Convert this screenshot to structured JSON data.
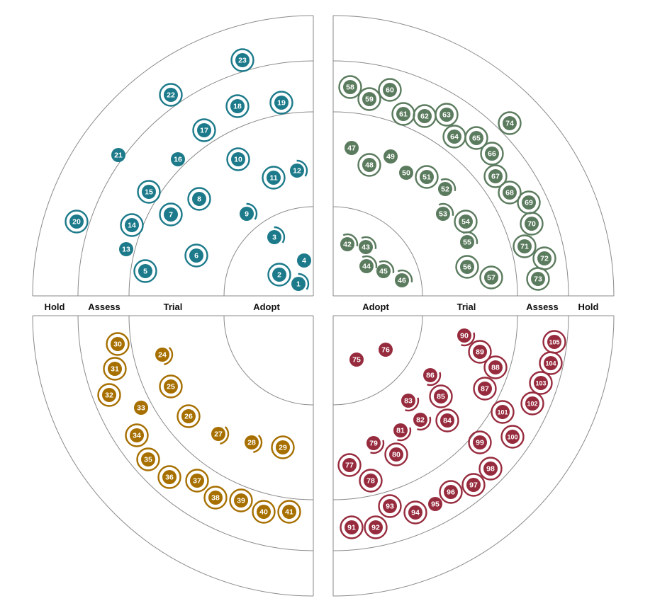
{
  "rings": [
    "Adopt",
    "Trial",
    "Assess",
    "Hold"
  ],
  "colors": {
    "teal": "#1c7a8a",
    "green": "#5b7b5e",
    "gold": "#a66f00",
    "red": "#972b3e",
    "gridline": "#8a8a8a"
  },
  "blip_legend": {
    "double_ring": "new or moved",
    "half_arc": "moved in",
    "plain": "no change"
  },
  "quadrants": [
    {
      "color": "teal",
      "blips": [
        {
          "n": "1",
          "ring": "Adopt",
          "mark": "arc"
        },
        {
          "n": "2",
          "ring": "Adopt",
          "mark": "ring"
        },
        {
          "n": "3",
          "ring": "Adopt",
          "mark": "arc"
        },
        {
          "n": "4",
          "ring": "Adopt",
          "mark": "plain"
        },
        {
          "n": "5",
          "ring": "Trial",
          "mark": "ring"
        },
        {
          "n": "6",
          "ring": "Trial",
          "mark": "ring"
        },
        {
          "n": "7",
          "ring": "Trial",
          "mark": "ring"
        },
        {
          "n": "8",
          "ring": "Trial",
          "mark": "ring"
        },
        {
          "n": "9",
          "ring": "Trial",
          "mark": "arc"
        },
        {
          "n": "10",
          "ring": "Trial",
          "mark": "ring"
        },
        {
          "n": "11",
          "ring": "Trial",
          "mark": "ring"
        },
        {
          "n": "12",
          "ring": "Trial",
          "mark": "arc"
        },
        {
          "n": "13",
          "ring": "Assess",
          "mark": "plain"
        },
        {
          "n": "14",
          "ring": "Assess",
          "mark": "ring"
        },
        {
          "n": "15",
          "ring": "Assess",
          "mark": "ring"
        },
        {
          "n": "16",
          "ring": "Assess",
          "mark": "plain"
        },
        {
          "n": "17",
          "ring": "Assess",
          "mark": "ring"
        },
        {
          "n": "18",
          "ring": "Assess",
          "mark": "ring"
        },
        {
          "n": "19",
          "ring": "Assess",
          "mark": "ring"
        },
        {
          "n": "20",
          "ring": "Hold",
          "mark": "ring"
        },
        {
          "n": "21",
          "ring": "Hold",
          "mark": "plain"
        },
        {
          "n": "22",
          "ring": "Hold",
          "mark": "ring"
        },
        {
          "n": "23",
          "ring": "Hold",
          "mark": "ring"
        }
      ]
    },
    {
      "color": "green",
      "blips": [
        {
          "n": "42",
          "ring": "Adopt",
          "mark": "arc"
        },
        {
          "n": "43",
          "ring": "Adopt",
          "mark": "arc"
        },
        {
          "n": "44",
          "ring": "Adopt",
          "mark": "arc"
        },
        {
          "n": "45",
          "ring": "Adopt",
          "mark": "arc"
        },
        {
          "n": "46",
          "ring": "Adopt",
          "mark": "arc"
        },
        {
          "n": "47",
          "ring": "Trial",
          "mark": "plain"
        },
        {
          "n": "48",
          "ring": "Trial",
          "mark": "ring"
        },
        {
          "n": "49",
          "ring": "Trial",
          "mark": "plain"
        },
        {
          "n": "50",
          "ring": "Trial",
          "mark": "plain"
        },
        {
          "n": "51",
          "ring": "Trial",
          "mark": "ring"
        },
        {
          "n": "52",
          "ring": "Trial",
          "mark": "arc"
        },
        {
          "n": "53",
          "ring": "Trial",
          "mark": "arc"
        },
        {
          "n": "54",
          "ring": "Trial",
          "mark": "ring"
        },
        {
          "n": "55",
          "ring": "Trial",
          "mark": "arc"
        },
        {
          "n": "56",
          "ring": "Trial",
          "mark": "ring"
        },
        {
          "n": "57",
          "ring": "Trial",
          "mark": "ring"
        },
        {
          "n": "58",
          "ring": "Assess",
          "mark": "ring"
        },
        {
          "n": "59",
          "ring": "Assess",
          "mark": "ring"
        },
        {
          "n": "60",
          "ring": "Assess",
          "mark": "ring"
        },
        {
          "n": "61",
          "ring": "Assess",
          "mark": "ring"
        },
        {
          "n": "62",
          "ring": "Assess",
          "mark": "ring"
        },
        {
          "n": "63",
          "ring": "Assess",
          "mark": "ring"
        },
        {
          "n": "64",
          "ring": "Assess",
          "mark": "ring"
        },
        {
          "n": "65",
          "ring": "Assess",
          "mark": "ring"
        },
        {
          "n": "66",
          "ring": "Assess",
          "mark": "ring"
        },
        {
          "n": "67",
          "ring": "Assess",
          "mark": "ring"
        },
        {
          "n": "68",
          "ring": "Assess",
          "mark": "ring"
        },
        {
          "n": "69",
          "ring": "Assess",
          "mark": "ring"
        },
        {
          "n": "70",
          "ring": "Assess",
          "mark": "ring"
        },
        {
          "n": "71",
          "ring": "Assess",
          "mark": "ring"
        },
        {
          "n": "72",
          "ring": "Assess",
          "mark": "ring"
        },
        {
          "n": "73",
          "ring": "Assess",
          "mark": "ring"
        },
        {
          "n": "74",
          "ring": "Hold",
          "mark": "ring"
        }
      ]
    },
    {
      "color": "gold",
      "blips": [
        {
          "n": "24",
          "ring": "Trial",
          "mark": "arc"
        },
        {
          "n": "25",
          "ring": "Trial",
          "mark": "ring"
        },
        {
          "n": "26",
          "ring": "Trial",
          "mark": "ring"
        },
        {
          "n": "27",
          "ring": "Trial",
          "mark": "arc"
        },
        {
          "n": "28",
          "ring": "Trial",
          "mark": "arc"
        },
        {
          "n": "29",
          "ring": "Trial",
          "mark": "ring"
        },
        {
          "n": "30",
          "ring": "Assess",
          "mark": "ring"
        },
        {
          "n": "31",
          "ring": "Assess",
          "mark": "ring"
        },
        {
          "n": "32",
          "ring": "Assess",
          "mark": "ring"
        },
        {
          "n": "33",
          "ring": "Assess",
          "mark": "plain"
        },
        {
          "n": "34",
          "ring": "Assess",
          "mark": "ring"
        },
        {
          "n": "35",
          "ring": "Assess",
          "mark": "ring"
        },
        {
          "n": "36",
          "ring": "Assess",
          "mark": "ring"
        },
        {
          "n": "37",
          "ring": "Assess",
          "mark": "ring"
        },
        {
          "n": "38",
          "ring": "Assess",
          "mark": "ring"
        },
        {
          "n": "39",
          "ring": "Assess",
          "mark": "ring"
        },
        {
          "n": "40",
          "ring": "Assess",
          "mark": "ring"
        },
        {
          "n": "41",
          "ring": "Assess",
          "mark": "ring"
        }
      ]
    },
    {
      "color": "red",
      "blips": [
        {
          "n": "75",
          "ring": "Adopt",
          "mark": "plain"
        },
        {
          "n": "76",
          "ring": "Adopt",
          "mark": "plain"
        },
        {
          "n": "77",
          "ring": "Trial",
          "mark": "ring"
        },
        {
          "n": "78",
          "ring": "Trial",
          "mark": "ring"
        },
        {
          "n": "79",
          "ring": "Trial",
          "mark": "arc"
        },
        {
          "n": "80",
          "ring": "Trial",
          "mark": "ring"
        },
        {
          "n": "81",
          "ring": "Trial",
          "mark": "arc"
        },
        {
          "n": "82",
          "ring": "Trial",
          "mark": "arc"
        },
        {
          "n": "83",
          "ring": "Trial",
          "mark": "arc"
        },
        {
          "n": "84",
          "ring": "Trial",
          "mark": "ring"
        },
        {
          "n": "85",
          "ring": "Trial",
          "mark": "ring"
        },
        {
          "n": "86",
          "ring": "Trial",
          "mark": "arc"
        },
        {
          "n": "87",
          "ring": "Trial",
          "mark": "ring"
        },
        {
          "n": "88",
          "ring": "Trial",
          "mark": "ring"
        },
        {
          "n": "89",
          "ring": "Trial",
          "mark": "ring"
        },
        {
          "n": "90",
          "ring": "Trial",
          "mark": "arc"
        },
        {
          "n": "91",
          "ring": "Assess",
          "mark": "ring"
        },
        {
          "n": "92",
          "ring": "Assess",
          "mark": "ring"
        },
        {
          "n": "93",
          "ring": "Assess",
          "mark": "ring"
        },
        {
          "n": "94",
          "ring": "Assess",
          "mark": "ring"
        },
        {
          "n": "95",
          "ring": "Assess",
          "mark": "plain"
        },
        {
          "n": "96",
          "ring": "Assess",
          "mark": "ring"
        },
        {
          "n": "97",
          "ring": "Assess",
          "mark": "ring"
        },
        {
          "n": "98",
          "ring": "Assess",
          "mark": "ring"
        },
        {
          "n": "99",
          "ring": "Assess",
          "mark": "ring"
        },
        {
          "n": "100",
          "ring": "Assess",
          "mark": "ring"
        },
        {
          "n": "101",
          "ring": "Assess",
          "mark": "ring"
        },
        {
          "n": "102",
          "ring": "Assess",
          "mark": "ring"
        },
        {
          "n": "103",
          "ring": "Assess",
          "mark": "ring"
        },
        {
          "n": "104",
          "ring": "Assess",
          "mark": "ring"
        },
        {
          "n": "105",
          "ring": "Assess",
          "mark": "ring"
        }
      ]
    }
  ]
}
